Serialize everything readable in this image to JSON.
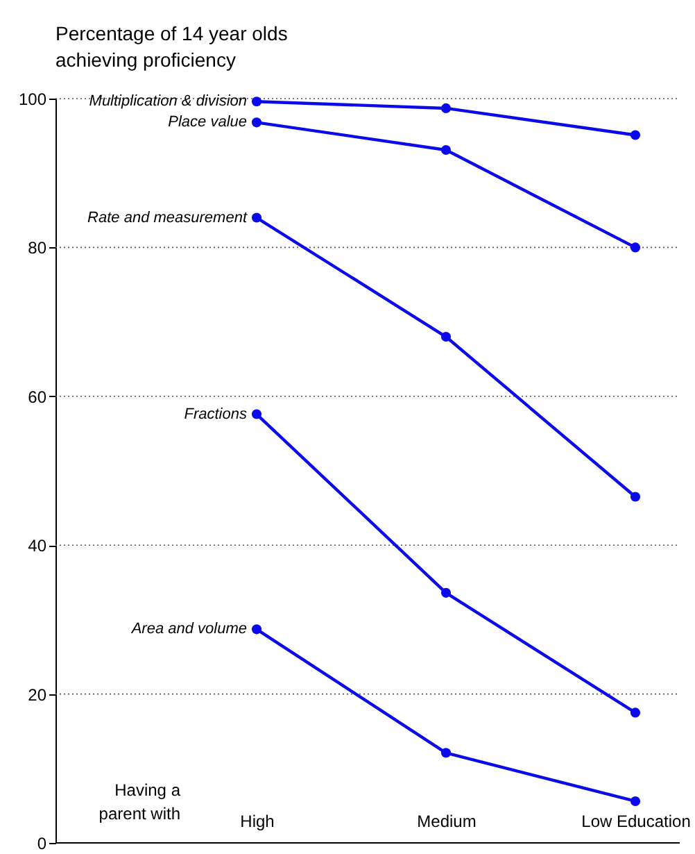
{
  "chart_data": {
    "type": "line",
    "title": [
      "Percentage of 14 year olds",
      "achieving proficiency"
    ],
    "xlabel": "Having a parent with",
    "categories": [
      "High",
      "Medium",
      "Low Education"
    ],
    "series": [
      {
        "name": "Multiplication & division",
        "color": "#0a0aeb",
        "values": [
          99.6,
          98.7,
          95.1
        ]
      },
      {
        "name": "Place value",
        "color": "#0a0aeb",
        "values": [
          96.8,
          93.1,
          80.0
        ]
      },
      {
        "name": "Rate and measurement",
        "color": "#0a0aeb",
        "values": [
          84.0,
          68.0,
          46.5
        ]
      },
      {
        "name": "Fractions",
        "color": "#0a0aeb",
        "values": [
          57.6,
          33.6,
          17.5
        ]
      },
      {
        "name": "Area and volume",
        "color": "#0a0aeb",
        "values": [
          28.7,
          12.1,
          5.6
        ]
      }
    ],
    "ylim": [
      0,
      100
    ],
    "yticks": [
      0,
      20,
      40,
      60,
      80,
      100
    ],
    "grid": "y",
    "legend": false,
    "marker": "circle",
    "line_style": "solid"
  }
}
